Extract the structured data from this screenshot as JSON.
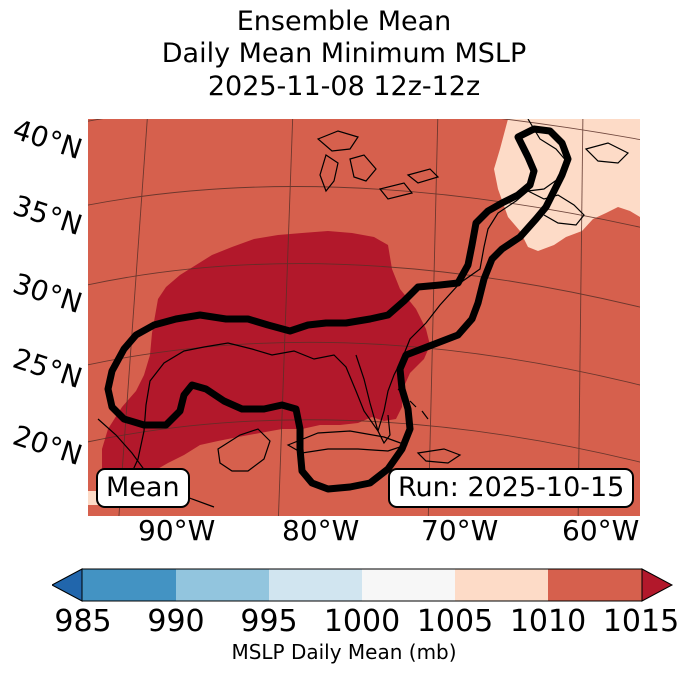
{
  "title": {
    "line1": "Ensemble Mean",
    "line2": "Daily Mean Minimum MSLP",
    "line3": "2025-11-08 12z-12z"
  },
  "lat_labels": [
    "40°N",
    "35°N",
    "30°N",
    "25°N",
    "20°N"
  ],
  "lon_labels": [
    "90°W",
    "80°W",
    "70°W",
    "60°W"
  ],
  "map": {
    "left_box": "Mean",
    "right_box": "Run: 2025-10-15",
    "fill_colors": {
      "low_1010": "#b2182b",
      "mid_1015": "#d6604d",
      "high_1020": "#fddbc7"
    }
  },
  "colorbar": {
    "label": "MSLP Daily Mean (mb)",
    "ticks": [
      "985",
      "990",
      "995",
      "1000",
      "1005",
      "1010",
      "1015"
    ],
    "bins": [
      {
        "range": "<985",
        "color": "#2166ac"
      },
      {
        "range": "985-990",
        "color": "#4393c3"
      },
      {
        "range": "990-995",
        "color": "#92c5de"
      },
      {
        "range": "995-1000",
        "color": "#d1e5f0"
      },
      {
        "range": "1000-1005",
        "color": "#f7f7f7"
      },
      {
        "range": "1005-1010",
        "color": "#fddbc7"
      },
      {
        "range": "1010-1015",
        "color": "#d6604d"
      },
      {
        "range": ">1015",
        "color": "#b2182b"
      }
    ]
  }
}
